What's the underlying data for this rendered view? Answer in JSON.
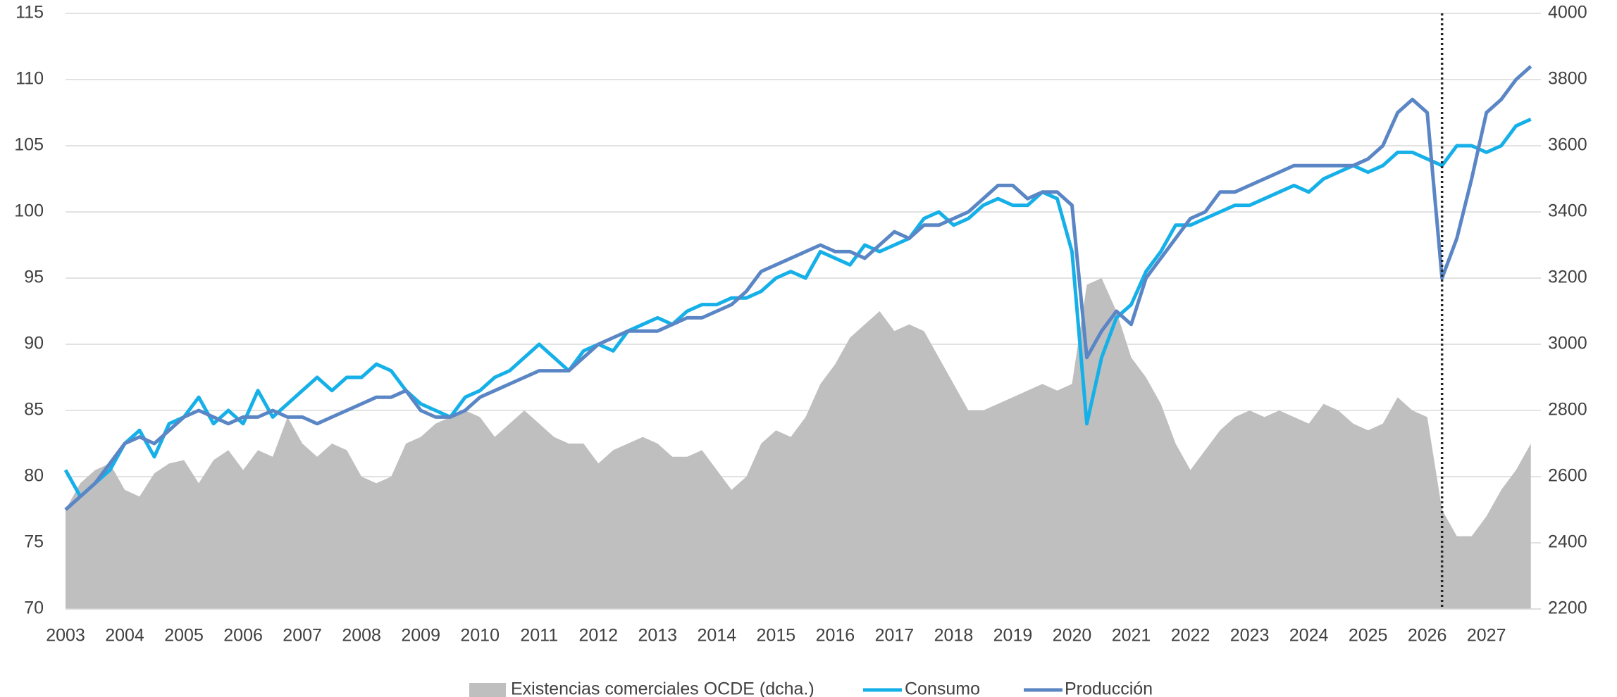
{
  "chart_data": {
    "type": "line",
    "x": [
      2003,
      2003.25,
      2003.5,
      2003.75,
      2004,
      2004.25,
      2004.5,
      2004.75,
      2005,
      2005.25,
      2005.5,
      2005.75,
      2006,
      2006.25,
      2006.5,
      2006.75,
      2007,
      2007.25,
      2007.5,
      2007.75,
      2008,
      2008.25,
      2008.5,
      2008.75,
      2009,
      2009.25,
      2009.5,
      2009.75,
      2010,
      2010.25,
      2010.5,
      2010.75,
      2011,
      2011.25,
      2011.5,
      2011.75,
      2012,
      2012.25,
      2012.5,
      2012.75,
      2013,
      2013.25,
      2013.5,
      2013.75,
      2014,
      2014.25,
      2014.5,
      2014.75,
      2015,
      2015.25,
      2015.5,
      2015.75,
      2016,
      2016.25,
      2016.5,
      2016.75,
      2017,
      2017.25,
      2017.5,
      2017.75,
      2018,
      2018.25,
      2018.5,
      2018.75,
      2019,
      2019.25,
      2019.5,
      2019.75,
      2020,
      2020.25,
      2020.5,
      2020.75,
      2021,
      2021.25,
      2021.5,
      2021.75,
      2022,
      2022.25,
      2022.5,
      2022.75,
      2023,
      2023.25,
      2023.5,
      2023.75,
      2024,
      2024.25,
      2024.5,
      2024.75,
      2025,
      2025.25,
      2025.5,
      2025.75,
      2026,
      2026.25,
      2026.5,
      2026.75,
      2027,
      2027.25,
      2027.5,
      2027.75
    ],
    "series": [
      {
        "name": "Existencias comerciales OCDE (dcha.)",
        "color": "#bfbfbf",
        "axis": "y2",
        "kind": "area",
        "values": [
          2500,
          2580,
          2620,
          2640,
          2560,
          2540,
          2610,
          2640,
          2650,
          2580,
          2650,
          2680,
          2620,
          2680,
          2660,
          2780,
          2700,
          2660,
          2700,
          2680,
          2600,
          2580,
          2600,
          2700,
          2720,
          2760,
          2780,
          2800,
          2780,
          2720,
          2760,
          2800,
          2760,
          2720,
          2700,
          2700,
          2640,
          2680,
          2700,
          2720,
          2700,
          2660,
          2660,
          2680,
          2620,
          2560,
          2600,
          2700,
          2740,
          2720,
          2780,
          2880,
          2940,
          3020,
          3060,
          3100,
          3040,
          3060,
          3040,
          2960,
          2880,
          2800,
          2800,
          2820,
          2840,
          2860,
          2880,
          2860,
          2880,
          3180,
          3200,
          3100,
          2960,
          2900,
          2820,
          2700,
          2620,
          2680,
          2740,
          2780,
          2800,
          2780,
          2800,
          2780,
          2760,
          2820,
          2800,
          2760,
          2740,
          2760,
          2840,
          2800,
          2780,
          2500,
          2420,
          2420,
          2480,
          2560,
          2620,
          2700
        ]
      },
      {
        "name": "Consumo",
        "color": "#16b0e8",
        "kind": "line",
        "values": [
          80.5,
          78.5,
          79.5,
          80.5,
          82.5,
          83.5,
          81.5,
          84,
          84.5,
          86,
          84,
          85,
          84,
          86.5,
          84.5,
          85.5,
          86.5,
          87.5,
          86.5,
          87.5,
          87.5,
          88.5,
          88,
          86.5,
          85.5,
          85,
          84.5,
          86,
          86.5,
          87.5,
          88,
          89,
          90,
          89,
          88,
          89.5,
          90,
          89.5,
          91,
          91.5,
          92,
          91.5,
          92.5,
          93,
          93,
          93.5,
          93.5,
          94,
          95,
          95.5,
          95,
          97,
          96.5,
          96,
          97.5,
          97,
          97.5,
          98,
          99.5,
          100,
          99,
          99.5,
          100.5,
          101,
          100.5,
          100.5,
          101.5,
          101,
          97,
          84,
          89,
          92,
          93,
          95.5,
          97,
          99,
          99,
          99.5,
          100,
          100.5,
          100.5,
          101,
          101.5,
          102,
          101.5,
          102.5,
          103,
          103.5,
          103,
          103.5,
          104.5,
          104.5,
          104,
          103.5,
          105,
          105,
          104.5,
          105,
          106.5,
          107
        ]
      },
      {
        "name": "Producción",
        "color": "#5b86c5",
        "kind": "line",
        "values": [
          77.5,
          78.5,
          79.5,
          81,
          82.5,
          83,
          82.5,
          83.5,
          84.5,
          85,
          84.5,
          84,
          84.5,
          84.5,
          85,
          84.5,
          84.5,
          84,
          84.5,
          85,
          85.5,
          86,
          86,
          86.5,
          85,
          84.5,
          84.5,
          85,
          86,
          86.5,
          87,
          87.5,
          88,
          88,
          88,
          89,
          90,
          90.5,
          91,
          91,
          91,
          91.5,
          92,
          92,
          92.5,
          93,
          94,
          95.5,
          96,
          96.5,
          97,
          97.5,
          97,
          97,
          96.5,
          97.5,
          98.5,
          98,
          99,
          99,
          99.5,
          100,
          101,
          102,
          102,
          101,
          101.5,
          101.5,
          100.5,
          89,
          91,
          92.5,
          91.5,
          95,
          96.5,
          98,
          99.5,
          100,
          101.5,
          101.5,
          102,
          102.5,
          103,
          103.5,
          103.5,
          103.5,
          103.5,
          103.5,
          104,
          105,
          107.5,
          108.5,
          107.5,
          95,
          98,
          102.5,
          107.5,
          108.5,
          110,
          111
        ]
      }
    ],
    "forecast_line": 2026.25,
    "xlim": [
      2003,
      2027.92
    ],
    "xticks": [
      2003,
      2004,
      2005,
      2006,
      2007,
      2008,
      2009,
      2010,
      2011,
      2012,
      2013,
      2014,
      2015,
      2016,
      2017,
      2018,
      2019,
      2020,
      2021,
      2022,
      2023,
      2024,
      2025,
      2026,
      2027
    ],
    "ylim": [
      70,
      115
    ],
    "yticks": [
      70,
      75,
      80,
      85,
      90,
      95,
      100,
      105,
      110,
      115
    ],
    "y2lim": [
      2200,
      4000
    ],
    "y2ticks": [
      2200,
      2400,
      2600,
      2800,
      3000,
      3200,
      3400,
      3600,
      3800,
      4000
    ],
    "grid": true,
    "legend": "bottom"
  }
}
